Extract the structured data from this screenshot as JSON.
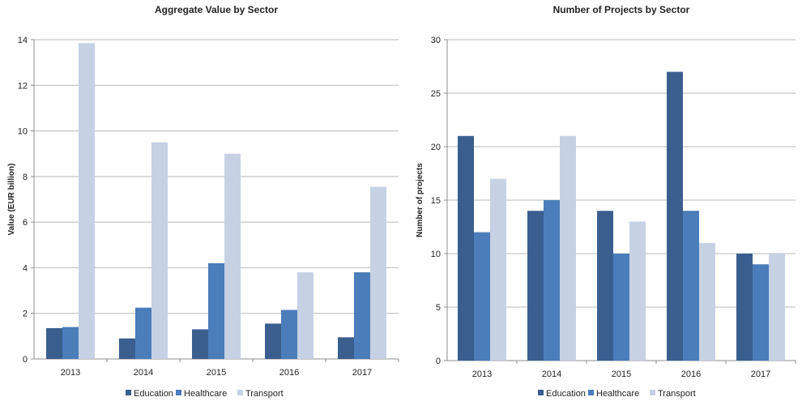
{
  "colors": {
    "Education": "#3a5f8f",
    "Healthcare": "#4a7dba",
    "Transport": "#c6d1e4",
    "grid": "#b8b8b8",
    "axis": "#8c8c8c"
  },
  "chart_data": [
    {
      "type": "bar",
      "title": "Aggregate Value by Sector",
      "xlabel": "",
      "ylabel": "Value (EUR billion)",
      "ylim": [
        0,
        14
      ],
      "yticks": [
        0,
        2,
        4,
        6,
        8,
        10,
        12,
        14
      ],
      "ytick_labels": [
        "0",
        "2",
        "4",
        "6",
        "8",
        "10",
        "12",
        "14"
      ],
      "grid": true,
      "legend_position": "bottom",
      "categories": [
        "2013",
        "2014",
        "2015",
        "2016",
        "2017"
      ],
      "series": [
        {
          "name": "Education",
          "values": [
            1.35,
            0.9,
            1.3,
            1.55,
            0.95
          ]
        },
        {
          "name": "Healthcare",
          "values": [
            1.4,
            2.25,
            4.2,
            2.15,
            3.8
          ]
        },
        {
          "name": "Transport",
          "values": [
            13.85,
            9.5,
            9.0,
            3.8,
            7.55
          ]
        }
      ]
    },
    {
      "type": "bar",
      "title": "Number of Projects by Sector",
      "xlabel": "",
      "ylabel": "Number of projects",
      "ylim": [
        0,
        30
      ],
      "yticks": [
        0,
        5,
        10,
        15,
        20,
        25,
        30
      ],
      "ytick_labels": [
        "0",
        "5",
        "10",
        "15",
        "20",
        "25",
        "30"
      ],
      "grid": true,
      "legend_position": "bottom",
      "categories": [
        "2013",
        "2014",
        "2015",
        "2016",
        "2017"
      ],
      "series": [
        {
          "name": "Education",
          "values": [
            21,
            14,
            14,
            27,
            10
          ]
        },
        {
          "name": "Healthcare",
          "values": [
            12,
            15,
            10,
            14,
            9
          ]
        },
        {
          "name": "Transport",
          "values": [
            17,
            21,
            13,
            11,
            10
          ]
        }
      ]
    }
  ]
}
